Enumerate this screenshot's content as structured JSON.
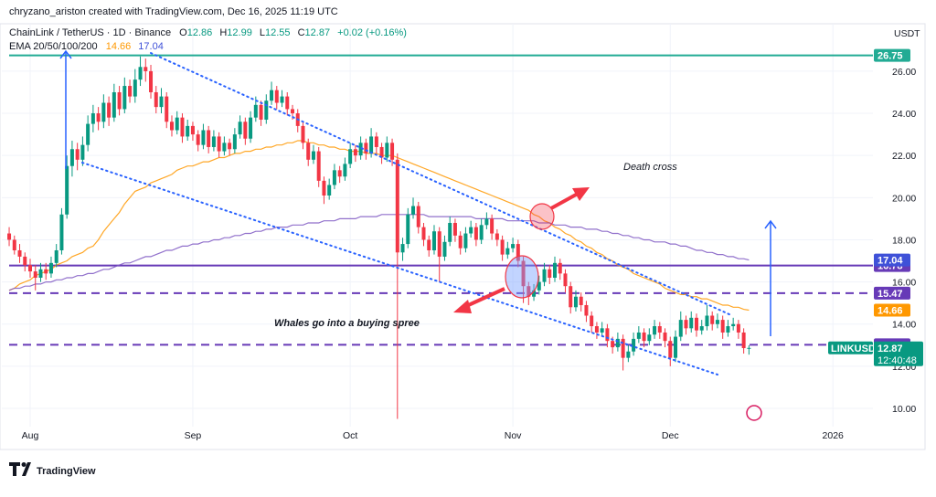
{
  "chart_data": {
    "type": "candlestick",
    "attribution": "chryzano_ariston created with TradingView.com, Dec 16, 2025 11:19 UTC",
    "title": "ChainLink / TetherUS · 1D · Binance",
    "ohlc_letters": [
      "O",
      "H",
      "L",
      "C"
    ],
    "change_label": "+0.02 (+0.16%)",
    "indicator": "EMA 20/50/100/200",
    "currency": "USDT",
    "symbol": "LINKUSDT",
    "countdown": "12:40:48",
    "brand": "TradingView",
    "up_color": "#089981",
    "down_color": "#f23645",
    "grid": true,
    "ylim": [
      9.22,
      27.21
    ],
    "yticks": [
      {
        "value": 10,
        "label": "10.00"
      },
      {
        "value": 12,
        "label": "12.00"
      },
      {
        "value": 14,
        "label": "14.00"
      },
      {
        "value": 16,
        "label": "16.00"
      },
      {
        "value": 18,
        "label": "18.00"
      },
      {
        "value": 20,
        "label": "20.00"
      },
      {
        "value": 22,
        "label": "22.00"
      },
      {
        "value": 24,
        "label": "24.00"
      },
      {
        "value": 26,
        "label": "26.00"
      }
    ],
    "x_labels": [
      "Aug",
      "Sep",
      "Oct",
      "Nov",
      "Dec",
      "2026"
    ],
    "annotations": [
      "Whales go into a buying spree",
      "Death cross"
    ],
    "levels": [
      {
        "value": 26.75,
        "color": "#22ab94",
        "style": "solid"
      },
      {
        "value": 16.78,
        "color": "#673ab7",
        "style": "solid"
      },
      {
        "value": 15.47,
        "color": "#673ab7",
        "style": "dashed"
      },
      {
        "value": 13.02,
        "color": "#673ab7",
        "style": "dashed"
      }
    ],
    "ema": [
      {
        "color": "#ff9800",
        "values": [
          15.6,
          15.7,
          15.9,
          16.0,
          16.1,
          16.3,
          16.4,
          16.5,
          16.6,
          16.8,
          16.9,
          17.0,
          17.2,
          17.3,
          17.4,
          17.6,
          17.7,
          18.0,
          18.4,
          18.7,
          19.0,
          19.3,
          19.7,
          20.0,
          20.3,
          20.4,
          20.5,
          20.7,
          20.8,
          20.9,
          21.0,
          21.1,
          21.3,
          21.4,
          21.5,
          21.5,
          21.6,
          21.7,
          21.7,
          21.8,
          21.9,
          21.9,
          22.0,
          22.1,
          22.1,
          22.2,
          22.2,
          22.3,
          22.3,
          22.4,
          22.4,
          22.5,
          22.5,
          22.6,
          22.6,
          22.7,
          22.7,
          22.6,
          22.6,
          22.5,
          22.5,
          22.4,
          22.4,
          22.3,
          22.3,
          22.2,
          22.2,
          22.2,
          22.1,
          22.1,
          22.1,
          22.0,
          22.0,
          22.0,
          21.9,
          21.8,
          21.7,
          21.6,
          21.5,
          21.4,
          21.3,
          21.2,
          21.1,
          21.0,
          20.9,
          20.8,
          20.7,
          20.6,
          20.5,
          20.4,
          20.3,
          20.2,
          20.1,
          20.0,
          19.9,
          19.8,
          19.7,
          19.6,
          19.5,
          19.4,
          19.2,
          19.1,
          18.9,
          18.8,
          18.6,
          18.5,
          18.3,
          18.2,
          18.0,
          17.9,
          17.7,
          17.6,
          17.4,
          17.3,
          17.1,
          17.0,
          16.8,
          16.7,
          16.6,
          16.4,
          16.3,
          16.2,
          16.1,
          16.0,
          15.9,
          15.7,
          15.6,
          15.5,
          15.4,
          15.4,
          15.3,
          15.3,
          15.2,
          15.2,
          15.1,
          15.0,
          14.9,
          14.9,
          14.8,
          14.8,
          14.7,
          14.66
        ]
      },
      {
        "color": "#7e57c2",
        "label_color": "#3f51d8",
        "values": [
          15.6,
          15.7,
          15.7,
          15.8,
          15.8,
          15.9,
          15.9,
          16.0,
          16.0,
          16.1,
          16.1,
          16.2,
          16.2,
          16.3,
          16.3,
          16.4,
          16.4,
          16.5,
          16.6,
          16.6,
          16.7,
          16.8,
          16.9,
          16.9,
          17.0,
          17.1,
          17.2,
          17.2,
          17.3,
          17.4,
          17.5,
          17.5,
          17.6,
          17.7,
          17.7,
          17.8,
          17.8,
          17.9,
          17.9,
          18.0,
          18.0,
          18.1,
          18.1,
          18.2,
          18.2,
          18.3,
          18.3,
          18.4,
          18.4,
          18.5,
          18.5,
          18.6,
          18.6,
          18.6,
          18.7,
          18.7,
          18.7,
          18.8,
          18.8,
          18.8,
          18.9,
          18.9,
          18.9,
          19.0,
          19.0,
          19.0,
          19.0,
          19.1,
          19.1,
          19.1,
          19.1,
          19.2,
          19.2,
          19.2,
          19.2,
          19.2,
          19.2,
          19.2,
          19.2,
          19.2,
          19.1,
          19.1,
          19.1,
          19.1,
          19.1,
          19.1,
          19.1,
          19.1,
          19.1,
          19.0,
          19.0,
          19.0,
          19.0,
          19.0,
          19.0,
          18.9,
          18.9,
          18.9,
          18.9,
          18.9,
          18.9,
          18.8,
          18.8,
          18.8,
          18.7,
          18.7,
          18.7,
          18.6,
          18.6,
          18.6,
          18.5,
          18.5,
          18.5,
          18.4,
          18.4,
          18.3,
          18.3,
          18.2,
          18.2,
          18.1,
          18.1,
          18.0,
          18.0,
          17.9,
          17.9,
          17.9,
          17.8,
          17.8,
          17.7,
          17.7,
          17.6,
          17.5,
          17.5,
          17.4,
          17.4,
          17.3,
          17.3,
          17.2,
          17.2,
          17.1,
          17.1,
          17.04
        ]
      }
    ],
    "candles": [
      [
        18.3,
        18.6,
        17.7,
        18.0
      ],
      [
        18.0,
        18.2,
        17.3,
        17.5
      ],
      [
        17.5,
        17.8,
        16.9,
        17.2
      ],
      [
        17.2,
        17.4,
        16.5,
        16.8
      ],
      [
        16.8,
        17.1,
        16.2,
        16.5
      ],
      [
        16.5,
        16.8,
        15.6,
        16.2
      ],
      [
        16.2,
        16.9,
        16.0,
        16.6
      ],
      [
        16.6,
        16.9,
        16.1,
        16.4
      ],
      [
        16.4,
        17.2,
        16.2,
        16.9
      ],
      [
        16.9,
        17.8,
        16.7,
        17.5
      ],
      [
        17.5,
        19.5,
        17.3,
        19.2
      ],
      [
        19.2,
        22.0,
        19.0,
        21.5
      ],
      [
        21.5,
        22.7,
        21.0,
        22.3
      ],
      [
        22.3,
        22.6,
        21.3,
        21.8
      ],
      [
        21.8,
        22.9,
        21.5,
        22.5
      ],
      [
        22.5,
        23.9,
        22.2,
        23.5
      ],
      [
        23.5,
        24.4,
        23.1,
        24.0
      ],
      [
        24.0,
        24.3,
        23.2,
        23.6
      ],
      [
        23.6,
        24.9,
        23.3,
        24.5
      ],
      [
        24.5,
        24.8,
        23.4,
        23.8
      ],
      [
        23.8,
        25.4,
        23.6,
        25.0
      ],
      [
        25.0,
        25.3,
        23.9,
        24.2
      ],
      [
        24.2,
        25.7,
        24.0,
        25.3
      ],
      [
        25.3,
        25.6,
        24.5,
        24.8
      ],
      [
        24.8,
        26.1,
        24.5,
        25.6
      ],
      [
        25.6,
        26.7,
        25.3,
        26.2
      ],
      [
        26.2,
        26.6,
        25.5,
        26.0
      ],
      [
        26.0,
        26.3,
        24.7,
        25.0
      ],
      [
        25.0,
        25.3,
        24.0,
        24.3
      ],
      [
        24.3,
        25.2,
        24.0,
        24.8
      ],
      [
        24.8,
        25.0,
        23.3,
        23.6
      ],
      [
        23.6,
        23.9,
        22.9,
        23.2
      ],
      [
        23.2,
        24.1,
        23.0,
        23.8
      ],
      [
        23.8,
        24.0,
        22.6,
        22.9
      ],
      [
        22.9,
        23.7,
        22.7,
        23.4
      ],
      [
        23.4,
        23.6,
        22.7,
        23.0
      ],
      [
        23.0,
        23.2,
        22.2,
        22.5
      ],
      [
        22.5,
        23.5,
        22.3,
        23.2
      ],
      [
        23.2,
        23.4,
        22.1,
        22.4
      ],
      [
        22.4,
        23.2,
        22.2,
        22.9
      ],
      [
        22.9,
        23.1,
        21.9,
        22.2
      ],
      [
        22.2,
        22.9,
        22.0,
        22.6
      ],
      [
        22.6,
        22.8,
        22.0,
        22.3
      ],
      [
        22.3,
        23.3,
        22.1,
        23.0
      ],
      [
        23.0,
        23.9,
        22.8,
        23.6
      ],
      [
        23.6,
        23.8,
        22.5,
        22.8
      ],
      [
        22.8,
        24.1,
        22.6,
        23.8
      ],
      [
        23.8,
        24.8,
        23.6,
        24.4
      ],
      [
        24.4,
        24.6,
        23.4,
        23.7
      ],
      [
        23.7,
        24.9,
        23.5,
        24.6
      ],
      [
        24.6,
        25.5,
        24.4,
        25.1
      ],
      [
        25.1,
        25.3,
        24.2,
        24.5
      ],
      [
        24.5,
        25.1,
        24.3,
        24.8
      ],
      [
        24.8,
        25.0,
        23.9,
        24.2
      ],
      [
        24.2,
        24.4,
        23.7,
        24.0
      ],
      [
        24.0,
        24.2,
        23.1,
        23.4
      ],
      [
        23.4,
        23.6,
        22.3,
        22.6
      ],
      [
        22.6,
        22.8,
        21.5,
        21.8
      ],
      [
        21.8,
        22.5,
        21.6,
        22.2
      ],
      [
        22.2,
        22.4,
        20.5,
        20.8
      ],
      [
        20.8,
        21.0,
        19.7,
        20.1
      ],
      [
        20.1,
        20.9,
        19.9,
        20.6
      ],
      [
        20.6,
        21.6,
        20.4,
        21.3
      ],
      [
        21.3,
        21.5,
        20.7,
        21.0
      ],
      [
        21.0,
        21.9,
        20.8,
        21.6
      ],
      [
        21.6,
        22.6,
        21.4,
        22.3
      ],
      [
        22.3,
        22.5,
        21.7,
        22.0
      ],
      [
        22.0,
        22.9,
        21.8,
        22.6
      ],
      [
        22.6,
        22.8,
        21.8,
        22.1
      ],
      [
        22.1,
        23.3,
        21.9,
        22.9
      ],
      [
        22.9,
        23.1,
        22.1,
        22.4
      ],
      [
        22.4,
        22.6,
        21.6,
        21.9
      ],
      [
        21.9,
        22.9,
        21.7,
        22.6
      ],
      [
        22.6,
        22.8,
        21.5,
        21.8
      ],
      [
        21.8,
        22.1,
        9.5,
        17.4
      ],
      [
        17.4,
        18.1,
        17.0,
        17.8
      ],
      [
        17.8,
        19.5,
        17.6,
        19.2
      ],
      [
        19.2,
        20.0,
        19.0,
        19.6
      ],
      [
        19.6,
        19.8,
        18.3,
        18.6
      ],
      [
        18.6,
        18.8,
        17.7,
        18.0
      ],
      [
        18.0,
        18.2,
        17.2,
        17.5
      ],
      [
        17.5,
        18.7,
        17.3,
        18.4
      ],
      [
        18.4,
        18.6,
        16.0,
        17.2
      ],
      [
        17.2,
        18.2,
        17.0,
        17.9
      ],
      [
        17.9,
        19.1,
        17.7,
        18.8
      ],
      [
        18.8,
        19.0,
        17.9,
        18.2
      ],
      [
        18.2,
        18.4,
        17.3,
        17.6
      ],
      [
        17.6,
        18.6,
        17.4,
        18.3
      ],
      [
        18.3,
        18.9,
        18.1,
        18.6
      ],
      [
        18.6,
        18.8,
        17.7,
        18.0
      ],
      [
        18.0,
        19.0,
        17.8,
        18.7
      ],
      [
        18.7,
        19.3,
        18.5,
        19.0
      ],
      [
        19.0,
        19.2,
        18.0,
        18.3
      ],
      [
        18.3,
        18.5,
        17.7,
        18.0
      ],
      [
        18.0,
        18.2,
        17.0,
        17.3
      ],
      [
        17.3,
        17.9,
        17.1,
        17.6
      ],
      [
        17.6,
        18.1,
        17.4,
        17.8
      ],
      [
        17.8,
        18.0,
        16.7,
        17.0
      ],
      [
        17.0,
        17.2,
        15.0,
        15.8
      ],
      [
        15.8,
        16.0,
        14.9,
        15.3
      ],
      [
        15.3,
        15.9,
        15.1,
        15.6
      ],
      [
        15.6,
        16.3,
        15.4,
        16.0
      ],
      [
        16.0,
        16.9,
        15.8,
        16.6
      ],
      [
        16.6,
        16.8,
        15.9,
        16.2
      ],
      [
        16.2,
        17.2,
        16.0,
        16.9
      ],
      [
        16.9,
        17.1,
        16.1,
        16.4
      ],
      [
        16.4,
        16.6,
        15.5,
        15.8
      ],
      [
        15.8,
        16.0,
        14.5,
        14.8
      ],
      [
        14.8,
        15.6,
        14.6,
        15.3
      ],
      [
        15.3,
        15.5,
        14.6,
        14.9
      ],
      [
        14.9,
        15.1,
        14.1,
        14.4
      ],
      [
        14.4,
        14.6,
        13.6,
        13.9
      ],
      [
        13.9,
        14.1,
        13.3,
        13.6
      ],
      [
        13.6,
        14.1,
        13.4,
        13.8
      ],
      [
        13.8,
        14.0,
        12.9,
        13.2
      ],
      [
        13.2,
        13.4,
        12.6,
        12.9
      ],
      [
        12.9,
        13.6,
        12.7,
        13.3
      ],
      [
        13.3,
        13.5,
        11.8,
        12.4
      ],
      [
        12.4,
        13.0,
        12.2,
        12.7
      ],
      [
        12.7,
        13.6,
        12.5,
        13.3
      ],
      [
        13.3,
        13.9,
        13.1,
        13.6
      ],
      [
        13.6,
        13.8,
        12.9,
        13.2
      ],
      [
        13.2,
        13.8,
        13.0,
        13.5
      ],
      [
        13.5,
        14.2,
        13.3,
        13.9
      ],
      [
        13.9,
        14.1,
        13.3,
        13.6
      ],
      [
        13.6,
        13.8,
        12.9,
        13.2
      ],
      [
        13.2,
        13.4,
        12.0,
        12.4
      ],
      [
        12.4,
        13.7,
        12.2,
        13.4
      ],
      [
        13.4,
        14.6,
        13.2,
        14.2
      ],
      [
        14.2,
        14.4,
        13.5,
        13.8
      ],
      [
        13.8,
        14.6,
        13.6,
        14.3
      ],
      [
        14.3,
        14.5,
        13.4,
        13.7
      ],
      [
        13.7,
        14.2,
        13.5,
        13.9
      ],
      [
        13.9,
        14.9,
        13.7,
        14.4
      ],
      [
        14.4,
        14.6,
        13.7,
        14.0
      ],
      [
        14.0,
        14.5,
        13.8,
        14.2
      ],
      [
        14.2,
        14.4,
        13.3,
        13.6
      ],
      [
        13.6,
        14.2,
        13.4,
        13.9
      ],
      [
        13.9,
        14.3,
        13.7,
        14.0
      ],
      [
        14.0,
        14.2,
        13.3,
        13.6
      ],
      [
        13.6,
        13.8,
        12.6,
        12.86
      ],
      [
        12.86,
        12.99,
        12.55,
        12.87
      ]
    ]
  }
}
